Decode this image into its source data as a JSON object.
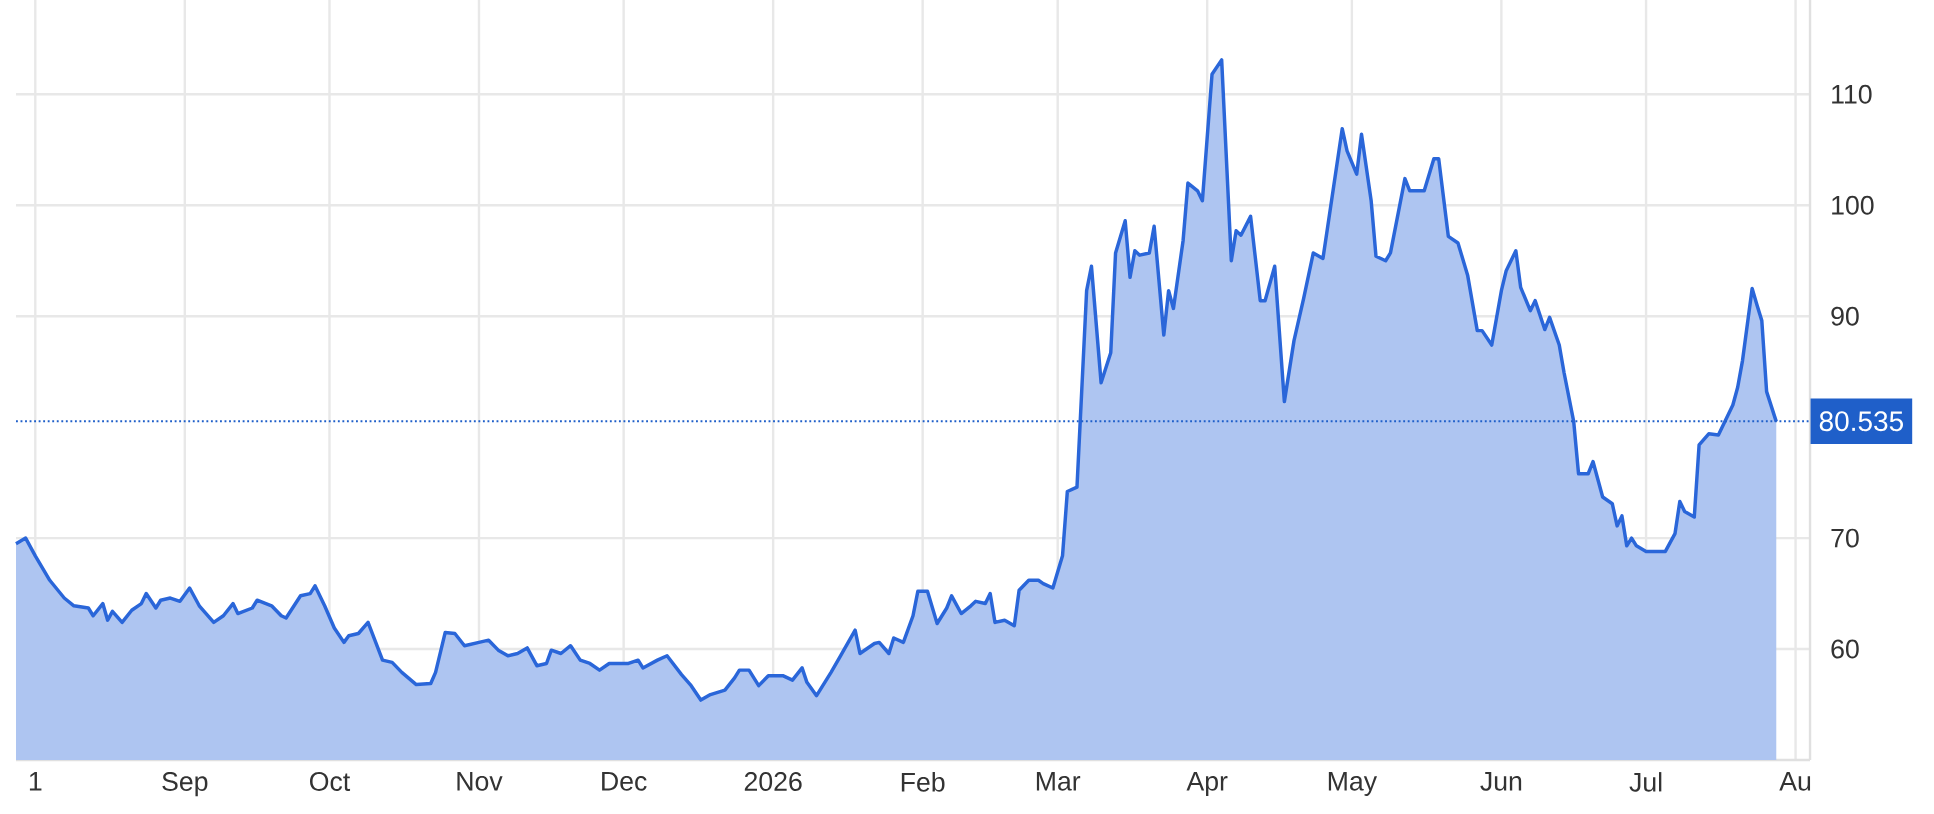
{
  "chart_data": {
    "type": "area",
    "color": "#2a66d9",
    "x": [
      "2025-07-28",
      "2025-07-30",
      "2025-08-01",
      "2025-08-04",
      "2025-08-07",
      "2025-08-09",
      "2025-08-12",
      "2025-08-13",
      "2025-08-15",
      "2025-08-16",
      "2025-08-17",
      "2025-08-19",
      "2025-08-21",
      "2025-08-23",
      "2025-08-24",
      "2025-08-26",
      "2025-08-27",
      "2025-08-29",
      "2025-08-31",
      "2025-09-02",
      "2025-09-04",
      "2025-09-07",
      "2025-09-09",
      "2025-09-11",
      "2025-09-12",
      "2025-09-15",
      "2025-09-16",
      "2025-09-19",
      "2025-09-21",
      "2025-09-22",
      "2025-09-25",
      "2025-09-27",
      "2025-09-28",
      "2025-09-30",
      "2025-10-02",
      "2025-10-04",
      "2025-10-05",
      "2025-10-07",
      "2025-10-09",
      "2025-10-12",
      "2025-10-14",
      "2025-10-16",
      "2025-10-19",
      "2025-10-22",
      "2025-10-23",
      "2025-10-25",
      "2025-10-27",
      "2025-10-29",
      "2025-11-01",
      "2025-11-03",
      "2025-11-05",
      "2025-11-07",
      "2025-11-09",
      "2025-11-11",
      "2025-11-13",
      "2025-11-15",
      "2025-11-16",
      "2025-11-18",
      "2025-11-20",
      "2025-11-22",
      "2025-11-24",
      "2025-11-26",
      "2025-11-28",
      "2025-11-30",
      "2025-12-02",
      "2025-12-04",
      "2025-12-05",
      "2025-12-08",
      "2025-12-10",
      "2025-12-13",
      "2025-12-15",
      "2025-12-17",
      "2025-12-19",
      "2025-12-22",
      "2025-12-24",
      "2025-12-25",
      "2025-12-27",
      "2025-12-29",
      "2025-12-31",
      "2026-01-03",
      "2026-01-05",
      "2026-01-07",
      "2026-01-08",
      "2026-01-10",
      "2026-01-13",
      "2026-01-15",
      "2026-01-18",
      "2026-01-19",
      "2026-01-22",
      "2026-01-23",
      "2026-01-25",
      "2026-01-26",
      "2026-01-28",
      "2026-01-30",
      "2026-01-31",
      "2026-02-02",
      "2026-02-04",
      "2026-02-06",
      "2026-02-07",
      "2026-02-09",
      "2026-02-11",
      "2026-02-12",
      "2026-02-14",
      "2026-02-15",
      "2026-02-16",
      "2026-02-18",
      "2026-02-20",
      "2026-02-21",
      "2026-02-23",
      "2026-02-25",
      "2026-02-26",
      "2026-02-28",
      "2026-03-02",
      "2026-03-03",
      "2026-03-05",
      "2026-03-06",
      "2026-03-07",
      "2026-03-08",
      "2026-03-10",
      "2026-03-12",
      "2026-03-13",
      "2026-03-15",
      "2026-03-16",
      "2026-03-17",
      "2026-03-18",
      "2026-03-20",
      "2026-03-21",
      "2026-03-23",
      "2026-03-24",
      "2026-03-25",
      "2026-03-27",
      "2026-03-28",
      "2026-03-30",
      "2026-03-31",
      "2026-04-02",
      "2026-04-04",
      "2026-04-06",
      "2026-04-07",
      "2026-04-08",
      "2026-04-10",
      "2026-04-12",
      "2026-04-13",
      "2026-04-15",
      "2026-04-17",
      "2026-04-19",
      "2026-04-21",
      "2026-04-23",
      "2026-04-25",
      "2026-04-26",
      "2026-04-29",
      "2026-04-30",
      "2026-05-02",
      "2026-05-03",
      "2026-05-05",
      "2026-05-06",
      "2026-05-08",
      "2026-05-09",
      "2026-05-12",
      "2026-05-13",
      "2026-05-16",
      "2026-05-18",
      "2026-05-19",
      "2026-05-21",
      "2026-05-23",
      "2026-05-25",
      "2026-05-27",
      "2026-05-28",
      "2026-05-30",
      "2026-06-01",
      "2026-06-02",
      "2026-06-04",
      "2026-06-05",
      "2026-06-07",
      "2026-06-08",
      "2026-06-10",
      "2026-06-11",
      "2026-06-13",
      "2026-06-14",
      "2026-06-16",
      "2026-06-17",
      "2026-06-19",
      "2026-06-20",
      "2026-06-22",
      "2026-06-24",
      "2026-06-25",
      "2026-06-26",
      "2026-06-27",
      "2026-06-28",
      "2026-06-29",
      "2026-07-01",
      "2026-07-03",
      "2026-07-05",
      "2026-07-07",
      "2026-07-08",
      "2026-07-09",
      "2026-07-11",
      "2026-07-12",
      "2026-07-14",
      "2026-07-16",
      "2026-07-17",
      "2026-07-19",
      "2026-07-20",
      "2026-07-21",
      "2026-07-23",
      "2026-07-24",
      "2026-07-25",
      "2026-07-26",
      "2026-07-28"
    ],
    "values": [
      69.5,
      70.0,
      68.4,
      66.2,
      64.6,
      63.9,
      63.7,
      63.0,
      64.1,
      62.6,
      63.4,
      62.4,
      63.5,
      64.1,
      65.0,
      63.7,
      64.4,
      64.6,
      64.3,
      65.5,
      63.9,
      62.4,
      63.0,
      64.1,
      63.2,
      63.7,
      64.4,
      63.9,
      63.0,
      62.8,
      64.8,
      65.0,
      65.7,
      63.9,
      61.9,
      60.6,
      61.2,
      61.4,
      62.4,
      59.0,
      58.8,
      57.9,
      56.8,
      56.9,
      57.9,
      61.5,
      61.4,
      60.3,
      60.6,
      60.8,
      59.9,
      59.4,
      59.6,
      60.1,
      58.5,
      58.7,
      59.9,
      59.6,
      60.3,
      59.0,
      58.7,
      58.1,
      58.7,
      58.7,
      58.7,
      59.0,
      58.3,
      59.0,
      59.4,
      57.7,
      56.7,
      55.4,
      55.9,
      56.3,
      57.4,
      58.1,
      58.1,
      56.7,
      57.6,
      57.6,
      57.2,
      58.3,
      57.0,
      55.8,
      57.9,
      59.4,
      61.7,
      59.6,
      60.5,
      60.6,
      59.6,
      61.0,
      60.6,
      63.0,
      65.2,
      65.2,
      62.3,
      63.7,
      64.8,
      63.2,
      63.9,
      64.3,
      64.1,
      65.0,
      62.4,
      62.6,
      62.1,
      65.3,
      66.2,
      66.2,
      65.9,
      65.5,
      68.4,
      74.2,
      74.6,
      83.4,
      92.3,
      94.5,
      84.0,
      86.7,
      95.7,
      98.6,
      93.5,
      95.9,
      95.5,
      95.7,
      98.1,
      88.3,
      92.3,
      90.7,
      96.8,
      102.0,
      101.3,
      100.4,
      111.8,
      113.1,
      95.0,
      97.7,
      97.3,
      99.0,
      91.4,
      91.4,
      94.5,
      82.3,
      87.8,
      91.6,
      95.7,
      95.2,
      98.1,
      106.9,
      104.9,
      102.8,
      106.4,
      100.4,
      95.4,
      95.0,
      95.7,
      102.4,
      101.3,
      101.3,
      104.2,
      104.2,
      97.2,
      96.6,
      93.7,
      88.7,
      88.7,
      87.4,
      92.3,
      94.1,
      95.9,
      92.6,
      90.5,
      91.4,
      88.8,
      89.9,
      87.4,
      84.9,
      80.5,
      75.8,
      75.8,
      76.9,
      73.7,
      73.1,
      71.1,
      72.0,
      69.3,
      70.0,
      69.3,
      68.8,
      68.8,
      68.8,
      70.4,
      73.3,
      72.4,
      71.9,
      78.4,
      79.4,
      79.3,
      80.2,
      82.0,
      83.6,
      86.0,
      92.5,
      91.0,
      89.6,
      83.2,
      80.5
    ],
    "xlim": [
      "2025-07-28",
      "2026-08-04"
    ],
    "xticks": [
      {
        "value": "2025-08-01",
        "label": "1"
      },
      {
        "value": "2025-09-01",
        "label": "Sep"
      },
      {
        "value": "2025-10-01",
        "label": "Oct"
      },
      {
        "value": "2025-11-01",
        "label": "Nov"
      },
      {
        "value": "2025-12-01",
        "label": "Dec"
      },
      {
        "value": "2026-01-01",
        "label": "2026"
      },
      {
        "value": "2026-02-01",
        "label": "Feb"
      },
      {
        "value": "2026-03-01",
        "label": "Mar"
      },
      {
        "value": "2026-04-01",
        "label": "Apr"
      },
      {
        "value": "2026-05-01",
        "label": "May"
      },
      {
        "value": "2026-06-01",
        "label": "Jun"
      },
      {
        "value": "2026-07-01",
        "label": "Jul"
      },
      {
        "value": "2026-08-01",
        "label": "Au"
      }
    ],
    "ylim": [
      50,
      118.5
    ],
    "yticks": [
      60,
      70,
      90,
      100,
      110
    ],
    "grid": true,
    "ref_lines": [
      {
        "axis": "y",
        "value": 80.535,
        "label": "80.535",
        "color": "#1f5fc9",
        "line_style": "dotted"
      }
    ]
  }
}
